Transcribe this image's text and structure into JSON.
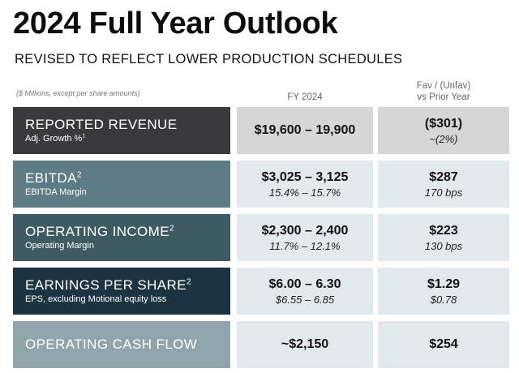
{
  "title": "2024 Full Year Outlook",
  "subtitle": "REVISED TO REFLECT LOWER PRODUCTION SCHEDULES",
  "note": "($ Millions, except per share amounts)",
  "columns": {
    "fy": "FY 2024",
    "fav_line1": "Fav / (Unfav)",
    "fav_line2": "vs Prior Year"
  },
  "rows": [
    {
      "label": "REPORTED REVENUE",
      "label_sup": "",
      "sublabel": "Adj. Growth %",
      "sublabel_sup": "1",
      "fy_value": "$19,600 – 19,900",
      "fy_sub": "",
      "fav_value": "($301)",
      "fav_sub": "~(2%)"
    },
    {
      "label": "EBITDA",
      "label_sup": "2",
      "sublabel": "EBITDA Margin",
      "sublabel_sup": "",
      "fy_value": "$3,025 – 3,125",
      "fy_sub": "15.4% – 15.7%",
      "fav_value": "$287",
      "fav_sub": "170 bps"
    },
    {
      "label": "OPERATING INCOME",
      "label_sup": "2",
      "sublabel": "Operating Margin",
      "sublabel_sup": "",
      "fy_value": "$2,300 – 2,400",
      "fy_sub": "11.7% – 12.1%",
      "fav_value": "$223",
      "fav_sub": "130 bps"
    },
    {
      "label": "EARNINGS PER SHARE",
      "label_sup": "2",
      "sublabel": "EPS, excluding Motional equity loss",
      "sublabel_sup": "",
      "fy_value": "$6.00 – 6.30",
      "fy_sub": "$6.55 – 6.85",
      "fav_value": "$1.29",
      "fav_sub": "$0.78"
    },
    {
      "label": "OPERATING CASH FLOW",
      "label_sup": "",
      "sublabel": "",
      "sublabel_sup": "",
      "fy_value": "~$2,150",
      "fy_sub": "",
      "fav_value": "$254",
      "fav_sub": ""
    }
  ]
}
